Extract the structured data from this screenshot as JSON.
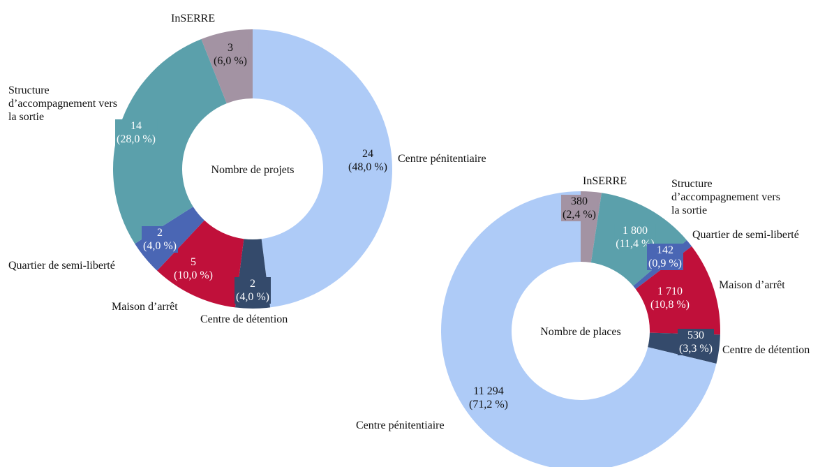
{
  "chart_data": [
    {
      "type": "donut",
      "center_label": "Nombre de projets",
      "categories": [
        "Centre pénitentiaire",
        "Centre de détention",
        "Maison d’arrêt",
        "Quartier de semi-liberté",
        "Structure d’accompagnement vers la sortie",
        "InSERRE"
      ],
      "values": [
        24,
        2,
        5,
        2,
        14,
        3
      ],
      "value_labels": [
        "24",
        "2",
        "5",
        "2",
        "14",
        "3"
      ],
      "percent_labels": [
        "(48,0 %)",
        "(4,0 %)",
        "(10,0 %)",
        "(4,0 %)",
        "(28,0 %)",
        "(6,0 %)"
      ],
      "colors": [
        "#aecbf7",
        "#344a6b",
        "#c0103a",
        "#4a66b4",
        "#5ba0ab",
        "#a393a3"
      ]
    },
    {
      "type": "donut",
      "center_label": "Nombre de places",
      "categories": [
        "InSERRE",
        "Structure d’accompagnement vers la sortie",
        "Quartier de semi-liberté",
        "Maison d’arrêt",
        "Centre de détention",
        "Centre pénitentiaire"
      ],
      "values": [
        380,
        1800,
        142,
        1710,
        530,
        11294
      ],
      "value_labels": [
        "380",
        "1 800",
        "142",
        "1 710",
        "530",
        "11 294"
      ],
      "percent_labels": [
        "(2,4 %)",
        "(11,4 %)",
        "(0,9 %)",
        "(10,8 %)",
        "(3,3 %)",
        "(71,2 %)"
      ],
      "colors": [
        "#a393a3",
        "#5ba0ab",
        "#4a66b4",
        "#c0103a",
        "#344a6b",
        "#aecbf7"
      ]
    }
  ]
}
